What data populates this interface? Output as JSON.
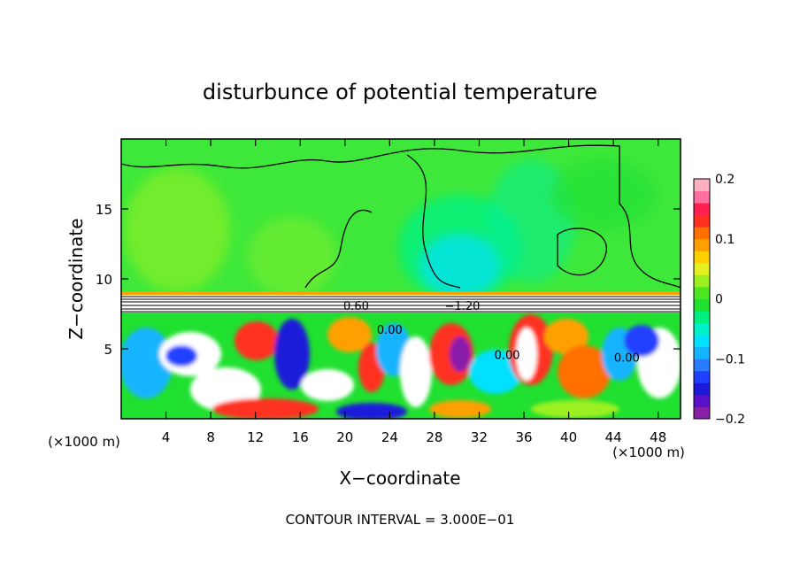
{
  "chart_data": {
    "type": "heatmap",
    "title": "disturbunce of potential temperature",
    "xlabel": "X−coordinate",
    "ylabel": "Z−coordinate",
    "x_unit_left": "(×1000 m)",
    "x_unit_right": "(×1000 m)",
    "xlim": [
      0,
      50
    ],
    "ylim": [
      0,
      20
    ],
    "x_ticks": [
      4,
      8,
      12,
      16,
      20,
      24,
      28,
      32,
      36,
      40,
      44,
      48
    ],
    "x_tick_labels": [
      "4",
      "8",
      "12",
      "16",
      "20",
      "24",
      "28",
      "32",
      "36",
      "40",
      "44",
      "48"
    ],
    "y_ticks": [
      5,
      10,
      15
    ],
    "y_tick_labels": [
      "5",
      "10",
      "15"
    ],
    "colorbar": {
      "range": [
        -0.2,
        0.2
      ],
      "ticks": [
        0.2,
        0.1,
        0,
        -0.1,
        -0.2
      ],
      "tick_labels": [
        "0.2",
        "0.1",
        "0",
        "−0.1",
        "−0.2"
      ],
      "colors": [
        "#8a1faa",
        "#5a10c8",
        "#1a1ad8",
        "#2040ff",
        "#2a7cff",
        "#16b4ff",
        "#00e0ff",
        "#00f0c8",
        "#00f080",
        "#20e030",
        "#4ee620",
        "#9cf020",
        "#e4f020",
        "#ffd000",
        "#ffa000",
        "#ff7000",
        "#ff3020",
        "#ff2050",
        "#ff70a0",
        "#ffb0c0"
      ]
    },
    "contour_labels": [
      {
        "text": "0.60",
        "x": 21.0,
        "z": 8.1
      },
      {
        "text": "0.00",
        "x": 24.0,
        "z": 6.4
      },
      {
        "text": "−1.20",
        "x": 30.5,
        "z": 8.1
      },
      {
        "text": "0.00",
        "x": 34.5,
        "z": 4.6
      },
      {
        "text": "0.00",
        "x": 45.2,
        "z": 4.4
      }
    ],
    "contour_interval_label": "CONTOUR INTERVAL = 3.000E−01"
  }
}
